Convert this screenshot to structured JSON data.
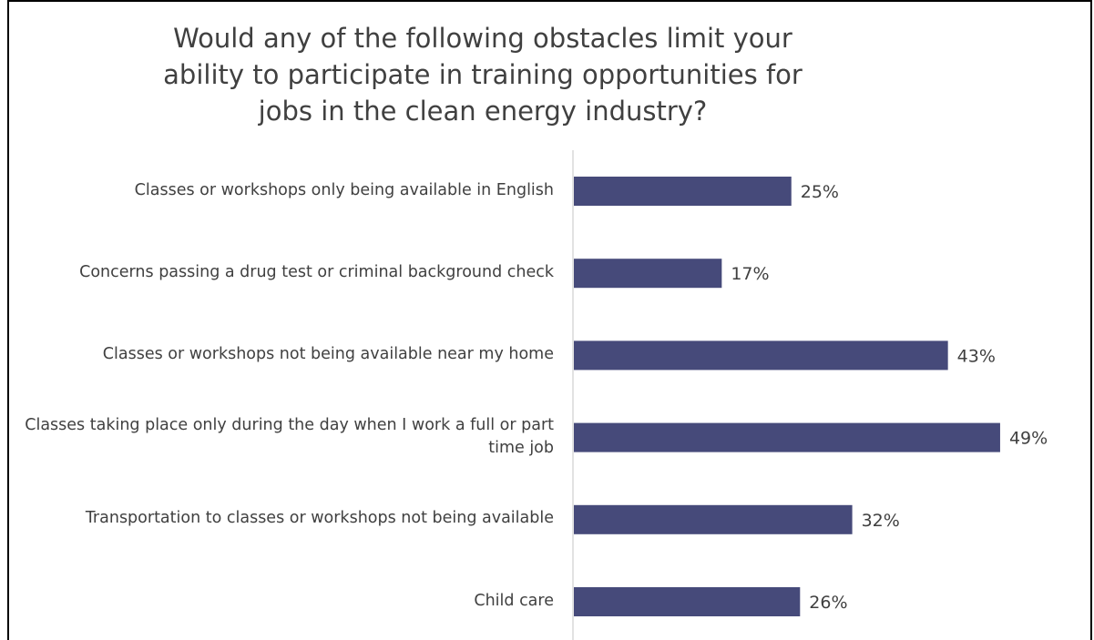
{
  "chart_data": {
    "type": "bar",
    "orientation": "horizontal",
    "title": "Would any of the following obstacles limit your ability to participate in training opportunities for jobs in the clean energy industry?",
    "categories": [
      "Classes or workshops only being available in English",
      "Concerns passing a drug test or criminal background check",
      "Classes or workshops not being available near my home",
      "Classes taking place only during the day when I work a full or part time job",
      "Transportation to classes or workshops not being available",
      "Child care"
    ],
    "values": [
      25,
      17,
      43,
      49,
      32,
      26
    ],
    "data_labels": [
      "25%",
      "17%",
      "43%",
      "49%",
      "32%",
      "26%"
    ],
    "xlim": [
      0,
      50
    ],
    "grid": false,
    "legend": "none",
    "bar_color": "#464a7a",
    "axis_color": "#d9d9d9",
    "text_color": "#404040"
  }
}
